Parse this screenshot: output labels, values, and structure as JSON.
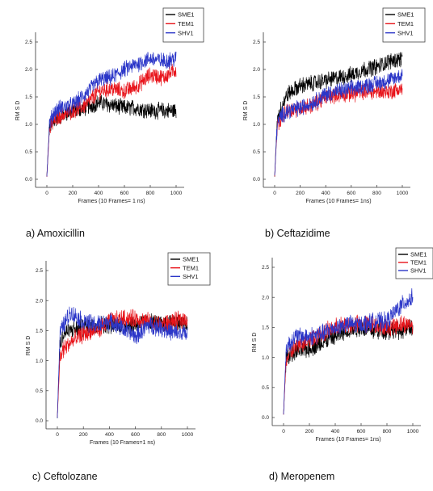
{
  "colors": {
    "SME1": "#000000",
    "TEM1": "#e8141b",
    "SHV1": "#2b36c8"
  },
  "chart_data": [
    {
      "type": "line",
      "caption": "a) Amoxicillin",
      "xlabel": "Frames (10 Frames= 1 ns)",
      "ylabel": "RM S D",
      "xlim": [
        0,
        1000
      ],
      "ylim": [
        0.0,
        2.5
      ],
      "x_ticks": [
        0,
        200,
        400,
        600,
        800,
        1000
      ],
      "y_ticks": [
        "0.0",
        "0.5",
        "1.0",
        "1.5",
        "2.0",
        "2.5"
      ],
      "legend": [
        "SME1",
        "TEM1",
        "SHV1"
      ],
      "legend_position": "top-right",
      "series": [
        {
          "name": "SME1",
          "x": [
            0,
            20,
            50,
            100,
            200,
            300,
            400,
            500,
            600,
            700,
            800,
            900,
            1000
          ],
          "y": [
            0.05,
            0.95,
            1.05,
            1.15,
            1.25,
            1.3,
            1.4,
            1.35,
            1.3,
            1.3,
            1.25,
            1.25,
            1.25
          ]
        },
        {
          "name": "TEM1",
          "x": [
            0,
            20,
            50,
            100,
            200,
            300,
            400,
            500,
            600,
            700,
            800,
            900,
            1000
          ],
          "y": [
            0.05,
            0.9,
            1.05,
            1.15,
            1.25,
            1.35,
            1.6,
            1.65,
            1.6,
            1.7,
            1.9,
            1.85,
            2.0
          ]
        },
        {
          "name": "SHV1",
          "x": [
            0,
            20,
            50,
            100,
            200,
            300,
            400,
            500,
            600,
            700,
            800,
            900,
            1000
          ],
          "y": [
            0.05,
            1.0,
            1.2,
            1.3,
            1.35,
            1.55,
            1.8,
            1.85,
            2.0,
            2.1,
            2.2,
            2.15,
            2.2
          ]
        }
      ]
    },
    {
      "type": "line",
      "caption": "b) Ceftazidime",
      "xlabel": "Frames (10 Frames= 1ns)",
      "ylabel": "RM S D",
      "xlim": [
        0,
        1000
      ],
      "ylim": [
        0.0,
        2.5
      ],
      "x_ticks": [
        0,
        200,
        400,
        600,
        800,
        1000
      ],
      "y_ticks": [
        "0.0",
        "0.5",
        "1.0",
        "1.5",
        "2.0",
        "2.5"
      ],
      "legend": [
        "SME1",
        "TEM1",
        "SHV1"
      ],
      "legend_position": "top-right",
      "series": [
        {
          "name": "SME1",
          "x": [
            0,
            20,
            50,
            100,
            200,
            300,
            400,
            500,
            600,
            700,
            800,
            900,
            1000
          ],
          "y": [
            0.05,
            1.1,
            1.3,
            1.55,
            1.7,
            1.75,
            1.8,
            1.85,
            1.9,
            2.0,
            2.05,
            2.15,
            2.2
          ]
        },
        {
          "name": "TEM1",
          "x": [
            0,
            20,
            50,
            100,
            200,
            300,
            400,
            500,
            600,
            700,
            800,
            900,
            1000
          ],
          "y": [
            0.05,
            0.95,
            1.1,
            1.25,
            1.3,
            1.35,
            1.5,
            1.55,
            1.55,
            1.6,
            1.6,
            1.6,
            1.65
          ]
        },
        {
          "name": "SHV1",
          "x": [
            0,
            20,
            50,
            100,
            200,
            300,
            400,
            500,
            600,
            700,
            800,
            900,
            1000
          ],
          "y": [
            0.05,
            1.0,
            1.15,
            1.25,
            1.3,
            1.4,
            1.55,
            1.6,
            1.65,
            1.7,
            1.75,
            1.8,
            1.9
          ]
        }
      ]
    },
    {
      "type": "line",
      "caption": "c) Ceftolozane",
      "xlabel": "Frames (10 Frames=1 ns)",
      "ylabel": "RM S D",
      "xlim": [
        0,
        1000
      ],
      "ylim": [
        0.0,
        2.5
      ],
      "x_ticks": [
        0,
        200,
        400,
        600,
        800,
        1000
      ],
      "y_ticks": [
        "0.0",
        "0.5",
        "1.0",
        "1.5",
        "2.0",
        "2.5"
      ],
      "legend": [
        "SME1",
        "TEM1",
        "SHV1"
      ],
      "legend_position": "top-right",
      "series": [
        {
          "name": "SME1",
          "x": [
            0,
            20,
            50,
            100,
            200,
            300,
            400,
            500,
            600,
            700,
            800,
            900,
            1000
          ],
          "y": [
            0.05,
            1.3,
            1.45,
            1.5,
            1.55,
            1.6,
            1.6,
            1.6,
            1.6,
            1.65,
            1.6,
            1.65,
            1.6
          ]
        },
        {
          "name": "TEM1",
          "x": [
            0,
            20,
            50,
            100,
            200,
            300,
            400,
            500,
            600,
            700,
            800,
            900,
            1000
          ],
          "y": [
            0.05,
            1.05,
            1.2,
            1.3,
            1.45,
            1.5,
            1.65,
            1.7,
            1.7,
            1.65,
            1.6,
            1.65,
            1.7
          ]
        },
        {
          "name": "SHV1",
          "x": [
            0,
            20,
            50,
            100,
            200,
            300,
            400,
            500,
            600,
            700,
            800,
            900,
            1000
          ],
          "y": [
            0.05,
            1.45,
            1.6,
            1.8,
            1.65,
            1.6,
            1.65,
            1.55,
            1.4,
            1.6,
            1.55,
            1.45,
            1.45
          ]
        }
      ]
    },
    {
      "type": "line",
      "caption": "d) Meropenem",
      "xlabel": "Frames (10 Frames= 1ns)",
      "ylabel": "RM S D",
      "xlim": [
        0,
        1000
      ],
      "ylim": [
        0.0,
        2.5
      ],
      "x_ticks": [
        0,
        200,
        400,
        600,
        800,
        1000
      ],
      "y_ticks": [
        "0.0",
        "0.5",
        "1.0",
        "1.5",
        "2.0",
        "2.5"
      ],
      "legend": [
        "SME1",
        "TEM1",
        "SHV1"
      ],
      "legend_position": "top-right",
      "series": [
        {
          "name": "SME1",
          "x": [
            0,
            20,
            50,
            100,
            200,
            300,
            400,
            500,
            600,
            700,
            800,
            900,
            1000
          ],
          "y": [
            0.05,
            1.0,
            1.05,
            1.1,
            1.15,
            1.25,
            1.35,
            1.45,
            1.5,
            1.45,
            1.45,
            1.45,
            1.5
          ]
        },
        {
          "name": "TEM1",
          "x": [
            0,
            20,
            50,
            100,
            200,
            300,
            400,
            500,
            600,
            700,
            800,
            900,
            1000
          ],
          "y": [
            0.05,
            0.95,
            1.05,
            1.2,
            1.3,
            1.4,
            1.5,
            1.55,
            1.55,
            1.55,
            1.5,
            1.55,
            1.55
          ]
        },
        {
          "name": "SHV1",
          "x": [
            0,
            20,
            50,
            100,
            200,
            300,
            400,
            500,
            600,
            700,
            800,
            900,
            1000
          ],
          "y": [
            0.05,
            1.15,
            1.25,
            1.35,
            1.35,
            1.4,
            1.5,
            1.55,
            1.55,
            1.6,
            1.6,
            1.85,
            2.0
          ]
        }
      ]
    }
  ]
}
